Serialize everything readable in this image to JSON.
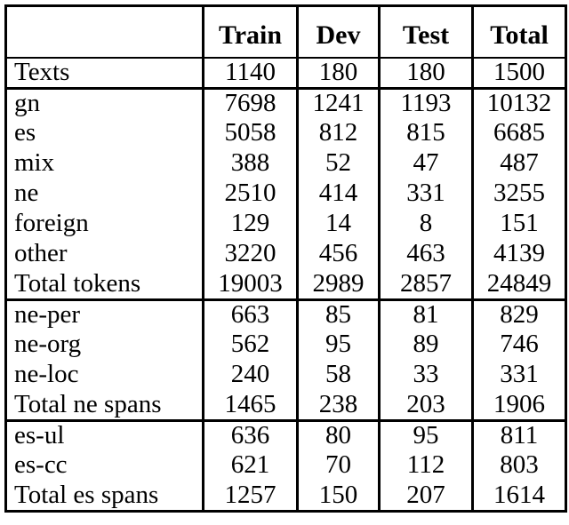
{
  "colors": {
    "border": "#000000",
    "text": "#000000",
    "background": "#ffffff"
  },
  "table": {
    "columns": [
      "",
      "Train",
      "Dev",
      "Test",
      "Total"
    ],
    "sections": [
      {
        "rows": [
          {
            "label": "Texts",
            "values": [
              "1140",
              "180",
              "180",
              "1500"
            ]
          }
        ]
      },
      {
        "rows": [
          {
            "label": "gn",
            "values": [
              "7698",
              "1241",
              "1193",
              "10132"
            ]
          },
          {
            "label": "es",
            "values": [
              "5058",
              "812",
              "815",
              "6685"
            ]
          },
          {
            "label": "mix",
            "values": [
              "388",
              "52",
              "47",
              "487"
            ]
          },
          {
            "label": "ne",
            "values": [
              "2510",
              "414",
              "331",
              "3255"
            ]
          },
          {
            "label": "foreign",
            "values": [
              "129",
              "14",
              "8",
              "151"
            ]
          },
          {
            "label": "other",
            "values": [
              "3220",
              "456",
              "463",
              "4139"
            ]
          },
          {
            "label": "Total tokens",
            "values": [
              "19003",
              "2989",
              "2857",
              "24849"
            ]
          }
        ]
      },
      {
        "rows": [
          {
            "label": "ne-per",
            "values": [
              "663",
              "85",
              "81",
              "829"
            ]
          },
          {
            "label": "ne-org",
            "values": [
              "562",
              "95",
              "89",
              "746"
            ]
          },
          {
            "label": "ne-loc",
            "values": [
              "240",
              "58",
              "33",
              "331"
            ]
          },
          {
            "label": "Total ne spans",
            "values": [
              "1465",
              "238",
              "203",
              "1906"
            ]
          }
        ]
      },
      {
        "rows": [
          {
            "label": "es-ul",
            "values": [
              "636",
              "80",
              "95",
              "811"
            ]
          },
          {
            "label": "es-cc",
            "values": [
              "621",
              "70",
              "112",
              "803"
            ]
          },
          {
            "label": "Total es spans",
            "values": [
              "1257",
              "150",
              "207",
              "1614"
            ]
          }
        ]
      }
    ]
  }
}
